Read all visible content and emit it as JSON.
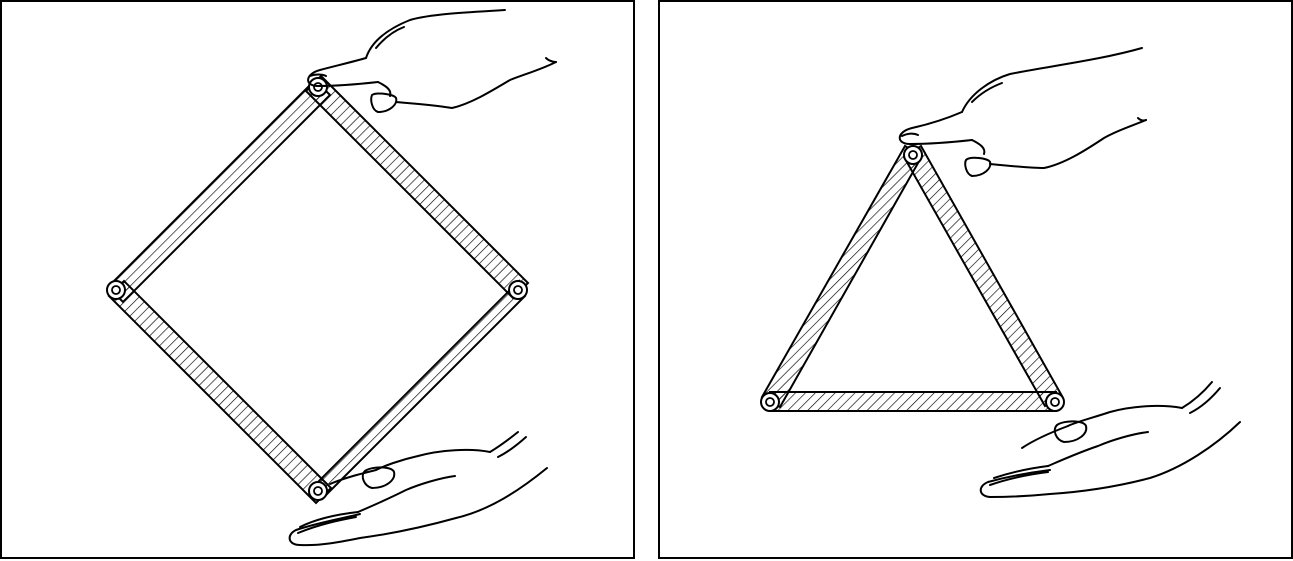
{
  "figure": {
    "panels": [
      {
        "shape": "square",
        "bars": 4,
        "hinges": 4
      },
      {
        "shape": "triangle",
        "bars": 3,
        "hinges": 3
      }
    ],
    "colors": {
      "line": "#000000",
      "background": "#ffffff"
    }
  }
}
